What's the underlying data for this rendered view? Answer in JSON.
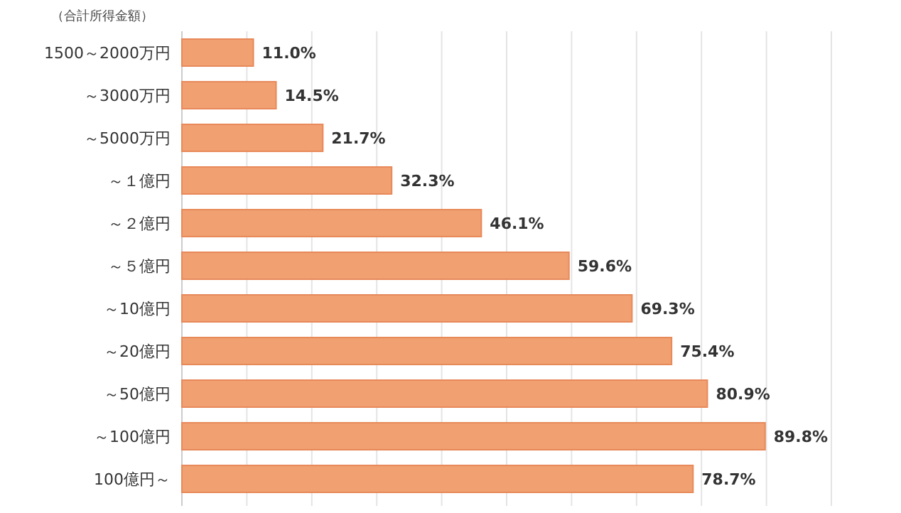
{
  "chart_data": {
    "type": "bar",
    "orientation": "horizontal",
    "ylabel": "（合計所得金額）",
    "categories": [
      "1500～2000万円",
      "～3000万円",
      "～5000万円",
      "～１億円",
      "～２億円",
      "～５億円",
      "～10億円",
      "～20億円",
      "～50億円",
      "～100億円",
      "100億円～"
    ],
    "values": [
      11.0,
      14.5,
      21.7,
      32.3,
      46.1,
      59.6,
      69.3,
      75.4,
      80.9,
      89.8,
      78.7
    ],
    "value_labels": [
      "11.0%",
      "14.5%",
      "21.7%",
      "32.3%",
      "46.1%",
      "59.6%",
      "69.3%",
      "75.4%",
      "80.9%",
      "89.8%",
      "78.7%"
    ],
    "color": "#f0a071",
    "xlim": [
      0,
      100
    ],
    "xticks": [
      {
        "value": 0,
        "label": null
      },
      {
        "value": 10,
        "label": null
      },
      {
        "value": 20,
        "label": null
      },
      {
        "value": 30,
        "label": null
      },
      {
        "value": 40,
        "label": null
      },
      {
        "value": 50,
        "label": null
      },
      {
        "value": 60,
        "label": null
      },
      {
        "value": 70,
        "label": null
      },
      {
        "value": 80,
        "label": null
      },
      {
        "value": 90,
        "label": null
      },
      {
        "value": 100,
        "label": null
      }
    ],
    "grid": "x",
    "tick_labels": "y"
  }
}
